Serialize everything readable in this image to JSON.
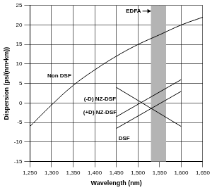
{
  "chart_data": {
    "type": "line",
    "x_label": "Wavelength (nm)",
    "y_label": "Dispersion (ps/(nm•km))",
    "xlim": [
      1250,
      1650
    ],
    "xticks": [
      1250,
      1300,
      1350,
      1400,
      1450,
      1500,
      1550,
      1600,
      1650
    ],
    "ylim": [
      -15,
      25
    ],
    "yticks": [
      -15,
      -10,
      -5,
      0,
      5,
      10,
      15,
      20,
      25
    ],
    "grid": true,
    "series": [
      {
        "name": "Non DSF",
        "color": "#000000",
        "x": [
          1250,
          1300,
          1350,
          1400,
          1450,
          1500,
          1550,
          1600,
          1650
        ],
        "values": [
          -6,
          -0.5,
          4.5,
          8.5,
          12,
          15,
          17.5,
          20,
          22
        ]
      },
      {
        "name": "(-D) NZ-DSF",
        "color": "#000000",
        "x": [
          1450,
          1600
        ],
        "values": [
          4,
          -6
        ]
      },
      {
        "name": "(+D) NZ-DSF",
        "color": "#000000",
        "x": [
          1450,
          1600
        ],
        "values": [
          -3.5,
          6
        ]
      },
      {
        "name": "DSF",
        "color": "#000000",
        "x": [
          1450,
          1600
        ],
        "values": [
          -6.5,
          3
        ]
      }
    ],
    "annotations": [
      {
        "text": "Non DSF",
        "x": 1318,
        "y": 7
      },
      {
        "text": "(-D) NZ-DSF",
        "x": 1412,
        "y": 1
      },
      {
        "text": "(+D) NZ-DSF",
        "x": 1412,
        "y": -2.5
      },
      {
        "text": "DSF",
        "x": 1468,
        "y": -9
      }
    ],
    "bands": [
      {
        "label": "EDFA",
        "from": 1530,
        "to": 1565,
        "color": "#b4b4b4"
      }
    ]
  }
}
